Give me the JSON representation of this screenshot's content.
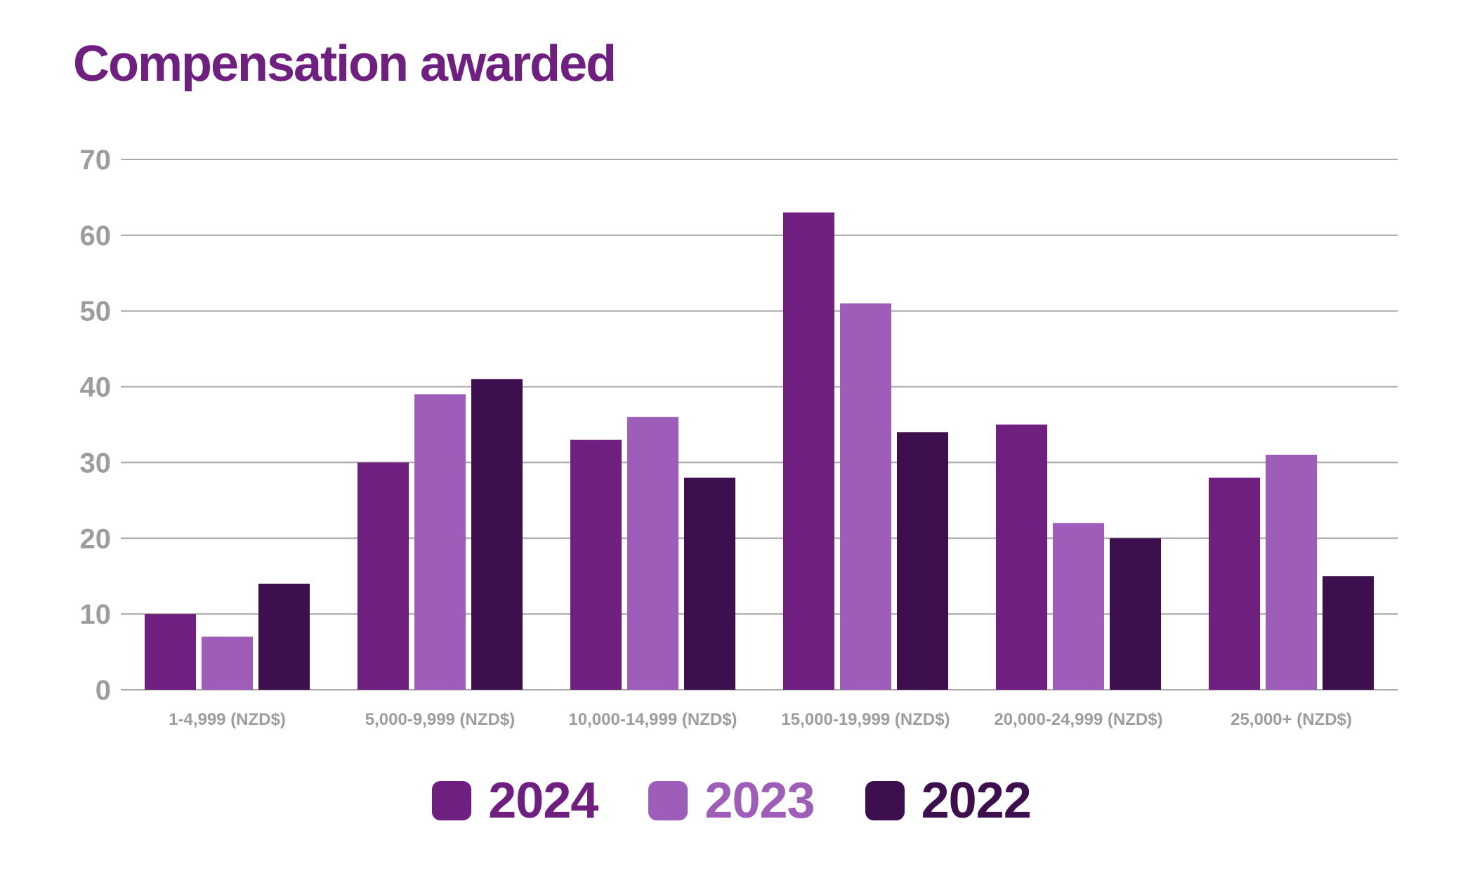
{
  "chart_data": {
    "type": "bar",
    "title": "Compensation awarded",
    "xlabel": "",
    "ylabel": "",
    "ylim": [
      0,
      70
    ],
    "yticks": [
      0,
      10,
      20,
      30,
      40,
      50,
      60,
      70
    ],
    "grid": true,
    "legend_position": "bottom-center",
    "categories": [
      "1-4,999 (NZD$)",
      "5,000-9,999 (NZD$)",
      "10,000-14,999 (NZD$)",
      "15,000-19,999 (NZD$)",
      "20,000-24,999 (NZD$)",
      "25,000+ (NZD$)"
    ],
    "series": [
      {
        "name": "2024",
        "color": "#6e1f80",
        "values": [
          10,
          30,
          33,
          63,
          35,
          28
        ]
      },
      {
        "name": "2023",
        "color": "#9d5db8",
        "values": [
          7,
          39,
          36,
          51,
          22,
          31
        ]
      },
      {
        "name": "2022",
        "color": "#3d0f4f",
        "values": [
          14,
          41,
          28,
          34,
          20,
          15
        ]
      }
    ]
  },
  "colors": {
    "title": "#6e1f80",
    "gridline": "#a9a9a9",
    "tick_text": "#9d9d9d"
  }
}
